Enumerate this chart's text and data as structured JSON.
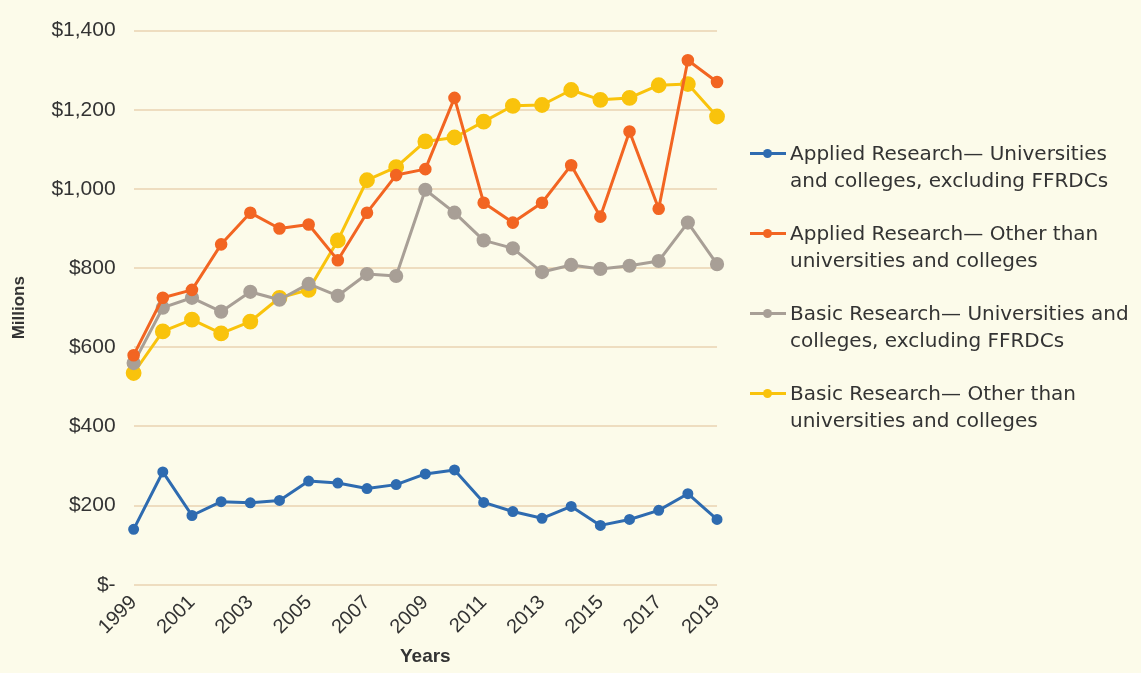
{
  "chart_data": {
    "type": "line",
    "xlabel": "Years",
    "ylabel": "Millions",
    "categories": [
      "1999",
      null,
      "2001",
      null,
      "2003",
      null,
      "2005",
      null,
      "2007",
      null,
      "2009",
      null,
      "2011",
      null,
      "2013",
      null,
      "2015",
      null,
      "2017",
      null,
      "2019"
    ],
    "series": [
      {
        "name": "Applied Research— Universities and colleges, excluding FFRDCs",
        "color": "#2e6bb0",
        "values": [
          140,
          285,
          175,
          210,
          207,
          213,
          262,
          257,
          243,
          253,
          280,
          290,
          208,
          185,
          168,
          198,
          150,
          165,
          188,
          230,
          165
        ]
      },
      {
        "name": "Applied Research— Other than universities and colleges",
        "color": "#f26522",
        "values": [
          580,
          725,
          745,
          860,
          940,
          900,
          910,
          820,
          940,
          1035,
          1050,
          1230,
          965,
          915,
          965,
          1060,
          930,
          1145,
          950,
          1325,
          1270
        ]
      },
      {
        "name": "Basic Research— Universities and colleges, excluding FFRDCs",
        "color": "#a89f96",
        "values": [
          560,
          700,
          725,
          690,
          740,
          720,
          760,
          730,
          785,
          780,
          998,
          940,
          870,
          850,
          790,
          808,
          798,
          806,
          818,
          915,
          810
        ]
      },
      {
        "name": "Basic Research— Other than universities and colleges",
        "color": "#f9c30c",
        "values": [
          535,
          640,
          670,
          635,
          665,
          725,
          745,
          870,
          1022,
          1055,
          1120,
          1130,
          1170,
          1210,
          1212,
          1250,
          1225,
          1230,
          1262,
          1265,
          1183
        ]
      }
    ],
    "ylim": [
      0,
      1400
    ],
    "yticks": [
      {
        "value": 0,
        "label": "$-"
      },
      {
        "value": 200,
        "label": "$200"
      },
      {
        "value": 400,
        "label": "$400"
      },
      {
        "value": 600,
        "label": "$600"
      },
      {
        "value": 800,
        "label": "$800"
      },
      {
        "value": 1000,
        "label": "$1,000"
      },
      {
        "value": 1200,
        "label": "$1,200"
      },
      {
        "value": 1400,
        "label": "$1,400"
      }
    ],
    "grid": "y",
    "legend": "right",
    "marker": "circle",
    "line_style": "solid"
  }
}
